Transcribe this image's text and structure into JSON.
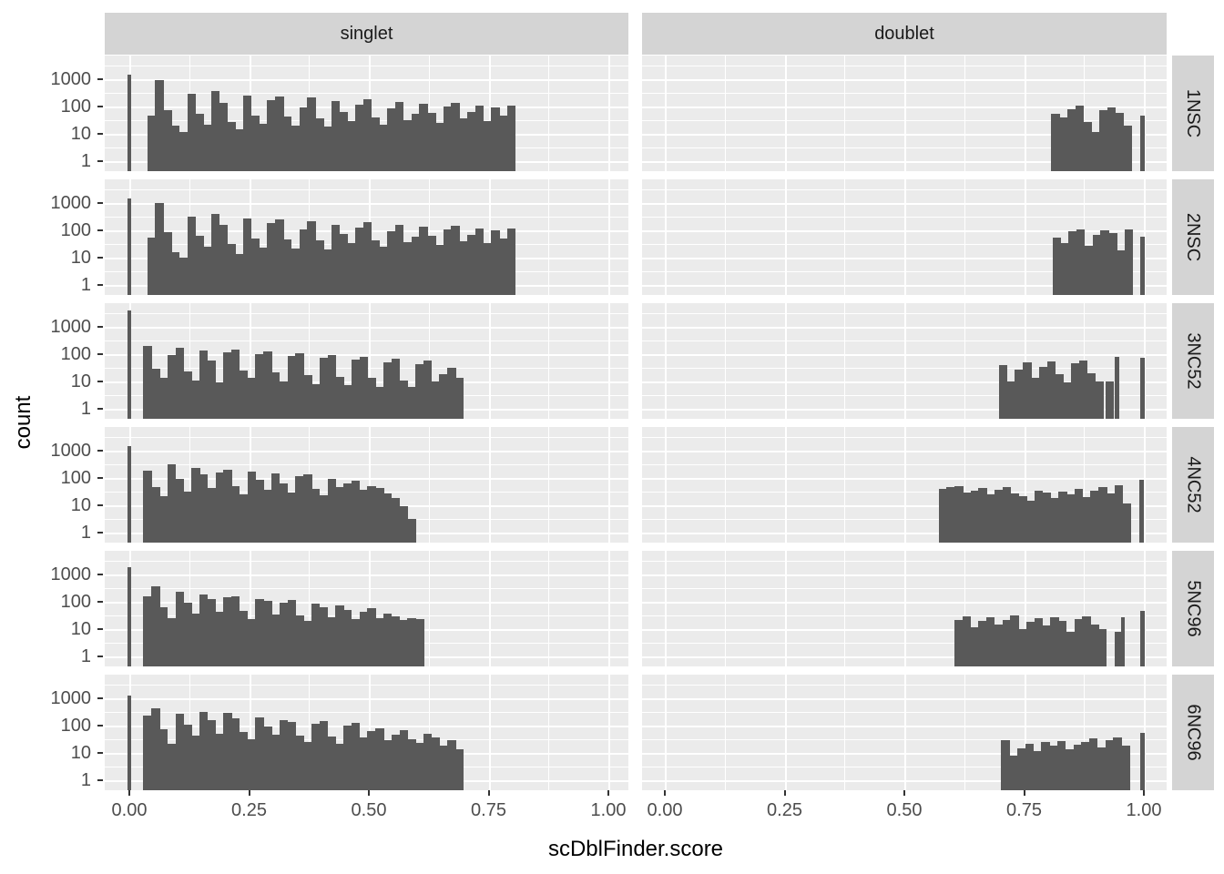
{
  "chart": {
    "type": "histogram-facets",
    "xlabel": "scDblFinder.score",
    "ylabel": "count",
    "col_facets": [
      "singlet",
      "doublet"
    ],
    "row_facets": [
      "1NSC",
      "2NSC",
      "3NC52",
      "4NC52",
      "5NC96",
      "6NC96"
    ],
    "x_tick_labels": [
      "0.00",
      "0.25",
      "0.50",
      "0.75",
      "1.00"
    ],
    "x_tick_values": [
      0,
      0.25,
      0.5,
      0.75,
      1
    ],
    "y_tick_labels": [
      "1000",
      "100",
      "10",
      "1"
    ],
    "y_tick_values": [
      1000,
      100,
      10,
      1
    ],
    "y_scale": "log10",
    "grid": "on",
    "colors": {
      "bar": "#595959",
      "panel_bg": "#EBEBEB",
      "strip_bg": "#D4D4D4",
      "grid": "#FFFFFF",
      "tick": "#333333",
      "tick_label": "#4D4D4D"
    },
    "chart_data": {
      "note": "faceted histograms of scDblFinder.score, log10 count axis",
      "binwidth": 0.0167,
      "panels": [
        {
          "row": "1NSC",
          "col": "singlet",
          "zero_spike": {
            "x": 0.0,
            "width": 0.009,
            "count": 1550
          },
          "start": 0.038,
          "counts": [
            45,
            950,
            75,
            20,
            12,
            300,
            55,
            22,
            360,
            140,
            28,
            15,
            260,
            48,
            24,
            170,
            230,
            42,
            20,
            95,
            210,
            38,
            18,
            155,
            65,
            30,
            115,
            180,
            40,
            22,
            85,
            150,
            32,
            55,
            125,
            58,
            26,
            100,
            135,
            36,
            62,
            105,
            30,
            92,
            48,
            112
          ],
          "extra_bars": []
        },
        {
          "row": "2NSC",
          "col": "singlet",
          "zero_spike": {
            "x": 0.0,
            "width": 0.009,
            "count": 1500
          },
          "start": 0.038,
          "counts": [
            55,
            1050,
            85,
            16,
            10,
            330,
            62,
            26,
            390,
            155,
            32,
            14,
            275,
            52,
            24,
            185,
            245,
            46,
            22,
            105,
            225,
            42,
            20,
            165,
            72,
            34,
            125,
            195,
            44,
            26,
            92,
            160,
            36,
            60,
            135,
            62,
            30,
            108,
            145,
            40,
            68,
            115,
            34,
            98,
            52,
            120
          ],
          "extra_bars": []
        },
        {
          "row": "3NC52",
          "col": "singlet",
          "zero_spike": {
            "x": 0.0,
            "width": 0.009,
            "count": 4200
          },
          "start": 0.03,
          "counts": [
            200,
            30,
            14,
            95,
            170,
            24,
            11,
            135,
            58,
            9,
            115,
            145,
            26,
            13,
            100,
            125,
            21,
            10,
            85,
            105,
            17,
            8,
            72,
            92,
            15,
            7,
            62,
            78,
            13,
            6,
            52,
            68,
            11,
            6,
            42,
            58,
            10,
            19,
            32,
            13
          ],
          "extra_bars": []
        },
        {
          "row": "4NC52",
          "col": "singlet",
          "zero_spike": {
            "x": 0.0,
            "width": 0.009,
            "count": 1450
          },
          "start": 0.03,
          "counts": [
            185,
            48,
            22,
            330,
            95,
            32,
            230,
            135,
            42,
            155,
            205,
            52,
            26,
            175,
            85,
            38,
            145,
            62,
            30,
            115,
            135,
            40,
            24,
            95,
            48,
            62,
            78,
            38,
            52,
            42,
            28,
            19,
            9,
            3
          ],
          "extra_bars": []
        },
        {
          "row": "5NC96",
          "col": "singlet",
          "zero_spike": {
            "x": 0.0,
            "width": 0.009,
            "count": 1900
          },
          "start": 0.03,
          "counts": [
            165,
            360,
            65,
            26,
            230,
            95,
            38,
            185,
            125,
            42,
            145,
            165,
            48,
            24,
            125,
            105,
            34,
            95,
            115,
            32,
            20,
            85,
            62,
            28,
            72,
            52,
            24,
            42,
            58,
            26,
            36,
            30,
            22,
            26,
            23
          ],
          "extra_bars": []
        },
        {
          "row": "6NC96",
          "col": "singlet",
          "zero_spike": {
            "x": 0.0,
            "width": 0.009,
            "count": 1250
          },
          "start": 0.03,
          "counts": [
            230,
            430,
            75,
            22,
            270,
            105,
            42,
            310,
            155,
            52,
            290,
            185,
            58,
            32,
            205,
            95,
            48,
            165,
            135,
            44,
            26,
            115,
            145,
            40,
            22,
            98,
            125,
            37,
            62,
            82,
            30,
            47,
            67,
            32,
            24,
            52,
            37,
            19,
            29,
            13
          ],
          "extra_bars": []
        },
        {
          "row": "1NSC",
          "col": "doublet",
          "zero_spike": null,
          "start": 0.807,
          "counts": [
            55,
            40,
            80,
            105,
            28,
            12,
            75,
            95,
            60,
            20
          ],
          "extra_bars": [
            {
              "x": 0.997,
              "width": 0.009,
              "count": 45
            }
          ]
        },
        {
          "row": "2NSC",
          "col": "doublet",
          "zero_spike": null,
          "start": 0.81,
          "counts": [
            55,
            35,
            90,
            110,
            28,
            70,
            100,
            80,
            18,
            110
          ],
          "extra_bars": [
            {
              "x": 0.997,
              "width": 0.009,
              "count": 60
            }
          ]
        },
        {
          "row": "3NC52",
          "col": "doublet",
          "zero_spike": null,
          "start": 0.698,
          "counts": [
            40,
            10,
            28,
            50,
            14,
            35,
            55,
            18,
            9,
            45,
            60,
            20,
            10
          ],
          "extra_bars": [
            {
              "x": 0.928,
              "width": 0.0167,
              "count": 10
            },
            {
              "x": 0.944,
              "width": 0.008,
              "count": 80
            },
            {
              "x": 0.997,
              "width": 0.008,
              "count": 72
            }
          ]
        },
        {
          "row": "4NC52",
          "col": "doublet",
          "zero_spike": null,
          "start": 0.572,
          "counts": [
            40,
            45,
            50,
            30,
            35,
            42,
            25,
            38,
            45,
            28,
            22,
            15,
            35,
            30,
            18,
            32,
            25,
            40,
            20,
            35,
            48,
            28,
            55,
            12
          ],
          "extra_bars": [
            {
              "x": 0.995,
              "width": 0.009,
              "count": 85
            }
          ]
        },
        {
          "row": "5NC96",
          "col": "doublet",
          "zero_spike": null,
          "start": 0.605,
          "counts": [
            22,
            30,
            12,
            20,
            28,
            15,
            22,
            32,
            10,
            18,
            25,
            14,
            28,
            20,
            8,
            24,
            30,
            15,
            10
          ],
          "extra_bars": [
            {
              "x": 0.947,
              "width": 0.0167,
              "count": 8
            },
            {
              "x": 0.956,
              "width": 0.008,
              "count": 28
            },
            {
              "x": 0.997,
              "width": 0.008,
              "count": 48
            }
          ]
        },
        {
          "row": "6NC96",
          "col": "doublet",
          "zero_spike": null,
          "start": 0.703,
          "counts": [
            30,
            8,
            15,
            22,
            12,
            25,
            18,
            28,
            14,
            20,
            26,
            35,
            16,
            30,
            38,
            18
          ],
          "extra_bars": [
            {
              "x": 0.997,
              "width": 0.008,
              "count": 55
            }
          ]
        }
      ]
    }
  }
}
